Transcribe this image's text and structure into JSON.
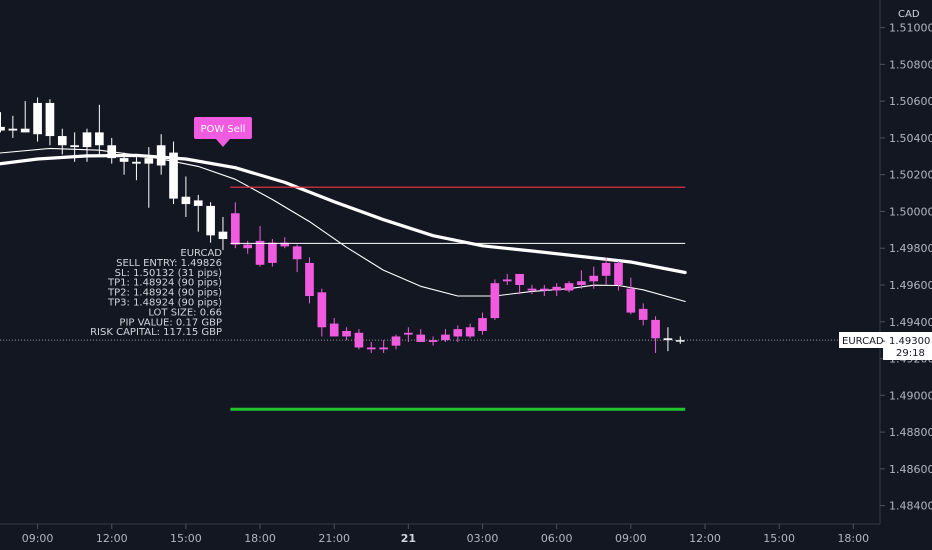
{
  "currency": "CAD",
  "symbol_tag": {
    "symbol": "EURCAD",
    "price": "1.49300",
    "countdown": "29:18"
  },
  "signal_label": "POW Sell",
  "trade_info": {
    "lines": [
      "EURCAD",
      "SELL ENTRY: 1.49826",
      "SL: 1.50132 (31 pips)",
      "TP1: 1.48924 (90 pips)",
      "TP2: 1.48924 (90 pips)",
      "TP3: 1.48924 (90 pips)",
      "LOT SIZE: 0.66",
      "PIP VALUE: 0.17 GBP",
      "RISK CAPITAL: 117.15 GBP"
    ]
  },
  "colors": {
    "background": "#131722",
    "bull_candle": "#ffffff",
    "bear_candle": "#ffffff",
    "signal_candle": "#f15bdf",
    "stop_loss_line": "#f23645",
    "entry_line": "#ffffff",
    "take_profit_line": "#22c52e",
    "signal_badge": "#f15bdf"
  },
  "chart_data": {
    "type": "candlestick",
    "ylim": [
      1.483,
      1.5115
    ],
    "y_ticks": [
      "1.51000",
      "1.50800",
      "1.50600",
      "1.50400",
      "1.50200",
      "1.50000",
      "1.49800",
      "1.49600",
      "1.49400",
      "1.49200",
      "1.49000",
      "1.48800",
      "1.48600",
      "1.48400"
    ],
    "y_tick_values": [
      1.51,
      1.508,
      1.506,
      1.504,
      1.502,
      1.5,
      1.498,
      1.496,
      1.494,
      1.492,
      1.49,
      1.488,
      1.486,
      1.484
    ],
    "x_ticks": [
      "09:00",
      "12:00",
      "15:00",
      "18:00",
      "21:00",
      "21",
      "03:00",
      "06:00",
      "09:00",
      "12:00",
      "15:00",
      "18:00"
    ],
    "x_tick_hours": [
      9,
      12,
      15,
      18,
      21,
      24,
      27,
      30,
      33,
      36,
      39,
      42
    ],
    "x_tick_bold": [
      false,
      false,
      false,
      false,
      false,
      true,
      false,
      false,
      false,
      false,
      false,
      false
    ],
    "x_range_hours": [
      7.48,
      43.08
    ],
    "candle_interval_hours": 0.5,
    "candles": [
      {
        "t": 7.5,
        "o": 1.5046,
        "h": 1.5054,
        "l": 1.5043,
        "c": 1.5044,
        "signal": false
      },
      {
        "t": 8.0,
        "o": 1.5044,
        "h": 1.5052,
        "l": 1.504,
        "c": 1.5045,
        "signal": false
      },
      {
        "t": 8.5,
        "o": 1.5045,
        "h": 1.506,
        "l": 1.5043,
        "c": 1.5043,
        "signal": false
      },
      {
        "t": 9.0,
        "o": 1.5042,
        "h": 1.5062,
        "l": 1.5038,
        "c": 1.5059,
        "signal": false
      },
      {
        "t": 9.5,
        "o": 1.5059,
        "h": 1.5061,
        "l": 1.5036,
        "c": 1.5041,
        "signal": false
      },
      {
        "t": 10.0,
        "o": 1.5041,
        "h": 1.5045,
        "l": 1.5031,
        "c": 1.5036,
        "signal": false
      },
      {
        "t": 10.5,
        "o": 1.5036,
        "h": 1.5043,
        "l": 1.5027,
        "c": 1.5035,
        "signal": false
      },
      {
        "t": 11.0,
        "o": 1.5035,
        "h": 1.5045,
        "l": 1.5027,
        "c": 1.5043,
        "signal": false
      },
      {
        "t": 11.5,
        "o": 1.5043,
        "h": 1.5058,
        "l": 1.503,
        "c": 1.5036,
        "signal": false
      },
      {
        "t": 12.0,
        "o": 1.5036,
        "h": 1.504,
        "l": 1.5026,
        "c": 1.5029,
        "signal": false
      },
      {
        "t": 12.5,
        "o": 1.5029,
        "h": 1.5032,
        "l": 1.502,
        "c": 1.5027,
        "signal": false
      },
      {
        "t": 13.0,
        "o": 1.5027,
        "h": 1.503,
        "l": 1.5017,
        "c": 1.5026,
        "signal": false
      },
      {
        "t": 13.5,
        "o": 1.5026,
        "h": 1.5035,
        "l": 1.5002,
        "c": 1.5029,
        "signal": false
      },
      {
        "t": 14.0,
        "o": 1.5036,
        "h": 1.5042,
        "l": 1.502,
        "c": 1.5025,
        "signal": false
      },
      {
        "t": 14.5,
        "o": 1.5032,
        "h": 1.5038,
        "l": 1.5004,
        "c": 1.5007,
        "signal": false
      },
      {
        "t": 15.0,
        "o": 1.5008,
        "h": 1.5019,
        "l": 1.4997,
        "c": 1.5004,
        "signal": false
      },
      {
        "t": 15.5,
        "o": 1.5006,
        "h": 1.5009,
        "l": 1.4989,
        "c": 1.5003,
        "signal": false
      },
      {
        "t": 16.0,
        "o": 1.5003,
        "h": 1.5005,
        "l": 1.4983,
        "c": 1.4987,
        "signal": false
      },
      {
        "t": 16.5,
        "o": 1.4989,
        "h": 1.4997,
        "l": 1.4979,
        "c": 1.4985,
        "signal": false
      },
      {
        "t": 17.0,
        "o": 1.4999,
        "h": 1.5005,
        "l": 1.498,
        "c": 1.4982,
        "signal": true
      },
      {
        "t": 17.5,
        "o": 1.4982,
        "h": 1.4984,
        "l": 1.4977,
        "c": 1.498,
        "signal": true
      },
      {
        "t": 18.0,
        "o": 1.4984,
        "h": 1.4992,
        "l": 1.497,
        "c": 1.4971,
        "signal": true
      },
      {
        "t": 18.5,
        "o": 1.4972,
        "h": 1.4985,
        "l": 1.497,
        "c": 1.4983,
        "signal": true
      },
      {
        "t": 19.0,
        "o": 1.4983,
        "h": 1.4986,
        "l": 1.498,
        "c": 1.4981,
        "signal": true
      },
      {
        "t": 19.5,
        "o": 1.4981,
        "h": 1.4982,
        "l": 1.4967,
        "c": 1.4974,
        "signal": true
      },
      {
        "t": 20.0,
        "o": 1.4972,
        "h": 1.4975,
        "l": 1.495,
        "c": 1.4954,
        "signal": true
      },
      {
        "t": 20.5,
        "o": 1.4956,
        "h": 1.4958,
        "l": 1.4932,
        "c": 1.4937,
        "signal": true
      },
      {
        "t": 21.0,
        "o": 1.4939,
        "h": 1.4942,
        "l": 1.4932,
        "c": 1.4932,
        "signal": true
      },
      {
        "t": 21.5,
        "o": 1.4935,
        "h": 1.4937,
        "l": 1.493,
        "c": 1.4932,
        "signal": true
      },
      {
        "t": 22.0,
        "o": 1.4934,
        "h": 1.4936,
        "l": 1.4925,
        "c": 1.4926,
        "signal": true
      },
      {
        "t": 22.5,
        "o": 1.4926,
        "h": 1.4929,
        "l": 1.4923,
        "c": 1.4925,
        "signal": true
      },
      {
        "t": 23.0,
        "o": 1.4925,
        "h": 1.493,
        "l": 1.4923,
        "c": 1.4926,
        "signal": true
      },
      {
        "t": 23.5,
        "o": 1.4927,
        "h": 1.4933,
        "l": 1.4925,
        "c": 1.4932,
        "signal": true
      },
      {
        "t": 24.0,
        "o": 1.4934,
        "h": 1.4937,
        "l": 1.4929,
        "c": 1.4933,
        "signal": true
      },
      {
        "t": 24.5,
        "o": 1.4933,
        "h": 1.4936,
        "l": 1.4929,
        "c": 1.4929,
        "signal": true
      },
      {
        "t": 25.0,
        "o": 1.493,
        "h": 1.4932,
        "l": 1.4927,
        "c": 1.4929,
        "signal": true
      },
      {
        "t": 25.5,
        "o": 1.4933,
        "h": 1.4936,
        "l": 1.4929,
        "c": 1.493,
        "signal": true
      },
      {
        "t": 26.0,
        "o": 1.4936,
        "h": 1.4938,
        "l": 1.4929,
        "c": 1.4932,
        "signal": true
      },
      {
        "t": 26.5,
        "o": 1.4937,
        "h": 1.4939,
        "l": 1.4931,
        "c": 1.4932,
        "signal": true
      },
      {
        "t": 27.0,
        "o": 1.4942,
        "h": 1.4945,
        "l": 1.4933,
        "c": 1.4935,
        "signal": true
      },
      {
        "t": 27.5,
        "o": 1.4961,
        "h": 1.4963,
        "l": 1.4941,
        "c": 1.4942,
        "signal": true
      },
      {
        "t": 28.0,
        "o": 1.4963,
        "h": 1.4966,
        "l": 1.496,
        "c": 1.4962,
        "signal": true
      },
      {
        "t": 28.5,
        "o": 1.496,
        "h": 1.4966,
        "l": 1.4955,
        "c": 1.4966,
        "signal": true
      },
      {
        "t": 29.0,
        "o": 1.4958,
        "h": 1.496,
        "l": 1.4955,
        "c": 1.4957,
        "signal": true
      },
      {
        "t": 29.5,
        "o": 1.4958,
        "h": 1.496,
        "l": 1.4954,
        "c": 1.4957,
        "signal": true
      },
      {
        "t": 30.0,
        "o": 1.4957,
        "h": 1.4961,
        "l": 1.4954,
        "c": 1.4959,
        "signal": true
      },
      {
        "t": 30.5,
        "o": 1.4957,
        "h": 1.4962,
        "l": 1.4956,
        "c": 1.4961,
        "signal": true
      },
      {
        "t": 31.0,
        "o": 1.496,
        "h": 1.4968,
        "l": 1.4958,
        "c": 1.4962,
        "signal": true
      },
      {
        "t": 31.5,
        "o": 1.4962,
        "h": 1.497,
        "l": 1.4958,
        "c": 1.4965,
        "signal": true
      },
      {
        "t": 32.0,
        "o": 1.4965,
        "h": 1.4975,
        "l": 1.496,
        "c": 1.4972,
        "signal": true
      },
      {
        "t": 32.5,
        "o": 1.4972,
        "h": 1.4973,
        "l": 1.4957,
        "c": 1.496,
        "signal": true
      },
      {
        "t": 33.0,
        "o": 1.4958,
        "h": 1.4964,
        "l": 1.4944,
        "c": 1.4945,
        "signal": true
      },
      {
        "t": 33.5,
        "o": 1.4947,
        "h": 1.495,
        "l": 1.4938,
        "c": 1.4941,
        "signal": true
      },
      {
        "t": 34.0,
        "o": 1.4941,
        "h": 1.4943,
        "l": 1.4923,
        "c": 1.4931,
        "signal": true
      },
      {
        "t": 34.5,
        "o": 1.4931,
        "h": 1.4937,
        "l": 1.4924,
        "c": 1.493,
        "signal": false
      },
      {
        "t": 35.0,
        "o": 1.493,
        "h": 1.4932,
        "l": 1.4928,
        "c": 1.493,
        "signal": false
      }
    ],
    "moving_averages": [
      {
        "thick": true,
        "points": [
          [
            7.48,
            1.50259
          ],
          [
            9,
            1.50285
          ],
          [
            11,
            1.50302
          ],
          [
            13,
            1.50305
          ],
          [
            15,
            1.50285
          ],
          [
            17,
            1.50238
          ],
          [
            19,
            1.50158
          ],
          [
            21,
            1.50053
          ],
          [
            23,
            1.49955
          ],
          [
            25,
            1.49868
          ],
          [
            27,
            1.49813
          ],
          [
            29,
            1.49785
          ],
          [
            31,
            1.49755
          ],
          [
            33,
            1.49725
          ],
          [
            35.2,
            1.49668
          ]
        ]
      },
      {
        "thick": false,
        "points": [
          [
            7.48,
            1.50318
          ],
          [
            9.5,
            1.50343
          ],
          [
            11.5,
            1.50333
          ],
          [
            13.5,
            1.50298
          ],
          [
            15.5,
            1.50245
          ],
          [
            17,
            1.50175
          ],
          [
            18.5,
            1.50065
          ],
          [
            20,
            1.49945
          ],
          [
            21.5,
            1.49805
          ],
          [
            23,
            1.4968
          ],
          [
            24.5,
            1.49593
          ],
          [
            26,
            1.4954
          ],
          [
            27.5,
            1.4954
          ],
          [
            29,
            1.49565
          ],
          [
            30.5,
            1.4958
          ],
          [
            31.5,
            1.49599
          ],
          [
            32.5,
            1.49597
          ],
          [
            33.5,
            1.49574
          ],
          [
            35.2,
            1.4951
          ]
        ]
      }
    ],
    "levels": [
      {
        "kind": "stop_loss",
        "price": 1.50132,
        "from_hour": 16.8,
        "to_hour": 35.2
      },
      {
        "kind": "entry",
        "price": 1.49826,
        "from_hour": 16.8,
        "to_hour": 35.2
      },
      {
        "kind": "take_profit",
        "price": 1.48924,
        "from_hour": 16.8,
        "to_hour": 35.2
      }
    ],
    "current_price": 1.493,
    "signal_hour": 16.5
  }
}
